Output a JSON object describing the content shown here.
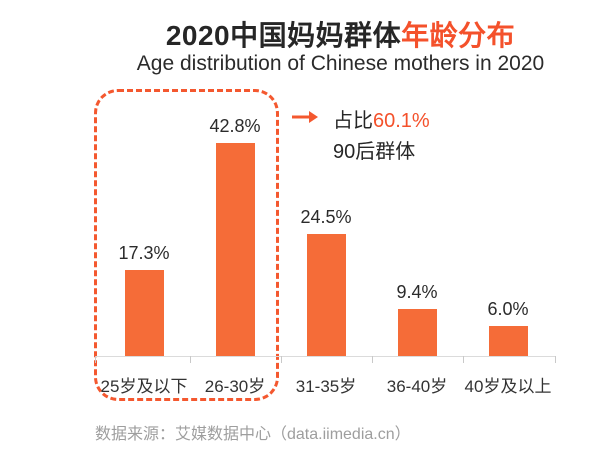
{
  "header": {
    "title_black": "2020中国妈妈群体",
    "title_accent": "年龄分布",
    "subtitle": "Age distribution of Chinese mothers in 2020"
  },
  "annotation": {
    "arrow_icon": "right-arrow-icon",
    "line1_black": "占比",
    "line1_accent": "60.1%",
    "line2": "90后群体"
  },
  "footer": {
    "source": "数据来源：艾媒数据中心（data.iimedia.cn）"
  },
  "colors": {
    "bar": "#F56C38",
    "accent": "#F4512B",
    "dashed_box": "#F4582F",
    "text_dark": "#262626",
    "source_gray": "#9E9E9E",
    "axis_gray": "#DBDBDB"
  },
  "chart_data": {
    "type": "bar",
    "title": "2020中国妈妈群体年龄分布",
    "subtitle": "Age distribution of Chinese mothers in 2020",
    "categories": [
      "25岁及以下",
      "26-30岁",
      "31-35岁",
      "36-40岁",
      "40岁及以上"
    ],
    "values": [
      17.3,
      42.8,
      24.5,
      9.4,
      6.0
    ],
    "value_labels": [
      "17.3%",
      "42.8%",
      "24.5%",
      "9.4%",
      "6.0%"
    ],
    "unit": "%",
    "ylim": [
      0,
      50
    ],
    "grid": false,
    "legend": "none",
    "bar_color": "#F56C38",
    "highlight_group": {
      "categories": [
        "25岁及以下",
        "26-30岁"
      ],
      "combined_share_label_prefix": "占比",
      "combined_share": "60.1%",
      "group_name": "90后群体"
    },
    "data_source": "数据来源：艾媒数据中心（data.iimedia.cn）"
  }
}
